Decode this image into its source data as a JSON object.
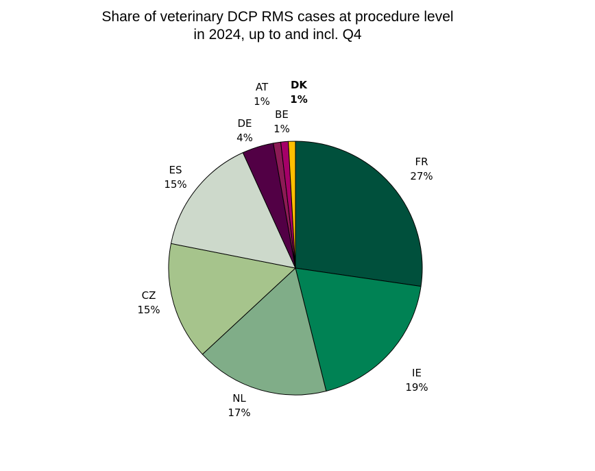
{
  "chart_data": {
    "type": "pie",
    "title_lines": [
      "Share of veterinary DCP RMS cases at procedure level",
      "in 2024, up to and incl. Q4"
    ],
    "start_category": "FR",
    "direction": "clockwise",
    "slices": [
      {
        "name": "FR",
        "label": "27%",
        "value": 27.3,
        "color": "#00503c",
        "bold": false
      },
      {
        "name": "IE",
        "label": "19%",
        "value": 18.8,
        "color": "#008254",
        "bold": false
      },
      {
        "name": "NL",
        "label": "17%",
        "value": 17.0,
        "color": "#80ad88",
        "bold": false
      },
      {
        "name": "CZ",
        "label": "15%",
        "value": 15.0,
        "color": "#a6c48c",
        "bold": false
      },
      {
        "name": "ES",
        "label": "15%",
        "value": 15.1,
        "color": "#cdd9cb",
        "bold": false
      },
      {
        "name": "DE",
        "label": "4%",
        "value": 4.0,
        "color": "#520045",
        "bold": false
      },
      {
        "name": "AT",
        "label": "1%",
        "value": 0.95,
        "color": "#8c1a55",
        "bold": false
      },
      {
        "name": "BE",
        "label": "1%",
        "value": 0.95,
        "color": "#a50068",
        "bold": false
      },
      {
        "name": "DK",
        "label": "1%",
        "value": 0.9,
        "color": "#ffbf00",
        "bold": true
      }
    ]
  }
}
